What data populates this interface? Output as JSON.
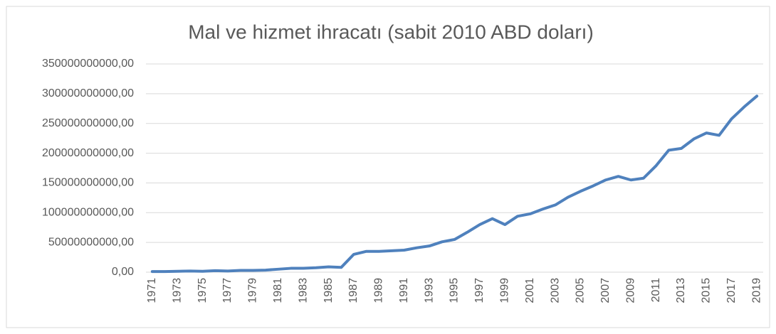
{
  "chart_data": {
    "type": "line",
    "title": "Mal ve hizmet ihracatı (sabit 2010 ABD doları)",
    "categories": [
      "1971",
      null,
      "1973",
      null,
      "1975",
      null,
      "1977",
      null,
      "1979",
      null,
      "1981",
      null,
      "1983",
      null,
      "1985",
      null,
      "1987",
      null,
      "1989",
      null,
      "1991",
      null,
      "1993",
      null,
      "1995",
      null,
      "1997",
      null,
      "1999",
      null,
      "2001",
      null,
      "2003",
      null,
      "2005",
      null,
      "2007",
      null,
      "2009",
      null,
      "2011",
      null,
      "2013",
      null,
      "2015",
      null,
      "2017",
      null,
      "2019"
    ],
    "series": [
      {
        "color": "#4f81bd",
        "values": [
          1000000000,
          1000000000,
          1500000000,
          2000000000,
          1500000000,
          2500000000,
          2000000000,
          3000000000,
          3000000000,
          3500000000,
          5000000000,
          6500000000,
          6500000000,
          7500000000,
          9000000000,
          8000000000,
          30000000000,
          35000000000,
          35000000000,
          36000000000,
          37000000000,
          41000000000,
          44000000000,
          51000000000,
          55000000000,
          67000000000,
          80000000000,
          90000000000,
          80000000000,
          94000000000,
          98000000000,
          106000000000,
          113000000000,
          126000000000,
          136000000000,
          145000000000,
          155000000000,
          161000000000,
          155000000000,
          158000000000,
          179000000000,
          205000000000,
          208000000000,
          224000000000,
          234000000000,
          230000000000,
          258000000000,
          278000000000,
          296000000000
        ]
      }
    ],
    "ylim": [
      0,
      350000000000
    ],
    "yticks": [
      {
        "value": 0,
        "label": "0,00"
      },
      {
        "value": 50000000000,
        "label": "50000000000,00"
      },
      {
        "value": 100000000000,
        "label": "100000000000,00"
      },
      {
        "value": 150000000000,
        "label": "150000000000,00"
      },
      {
        "value": 200000000000,
        "label": "200000000000,00"
      },
      {
        "value": 250000000000,
        "label": "250000000000,00"
      },
      {
        "value": 300000000000,
        "label": "300000000000,00"
      },
      {
        "value": 350000000000,
        "label": "350000000000,00"
      }
    ],
    "grid": true
  }
}
